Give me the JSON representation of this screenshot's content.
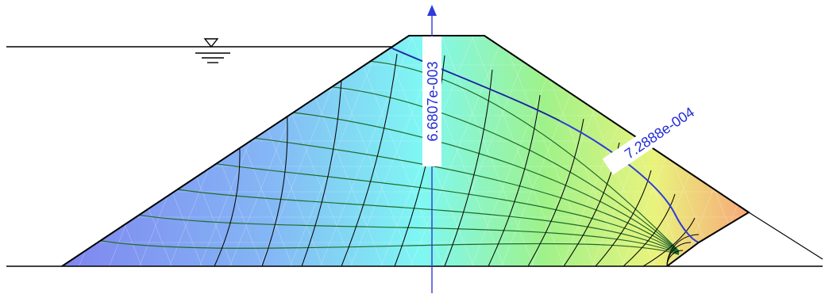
{
  "labels": {
    "flux_vertical": "6.6807e-003",
    "flux_inclined": "7.2888e-004"
  },
  "colors": {
    "outline": "#000000",
    "flux_label": "#1f2bd6",
    "flux_line": "#2e3bd8",
    "flow_lines": "#1f6b2a",
    "equipotential_lines": "#0b0b0b",
    "mesh": "#ffffff",
    "gradient": [
      "#7f86ef",
      "#84c7f3",
      "#7ff7f3",
      "#9ff28a",
      "#e9f37c",
      "#f7b07a"
    ]
  },
  "icons": {
    "water_level": "water-level-triangle-icon"
  }
}
